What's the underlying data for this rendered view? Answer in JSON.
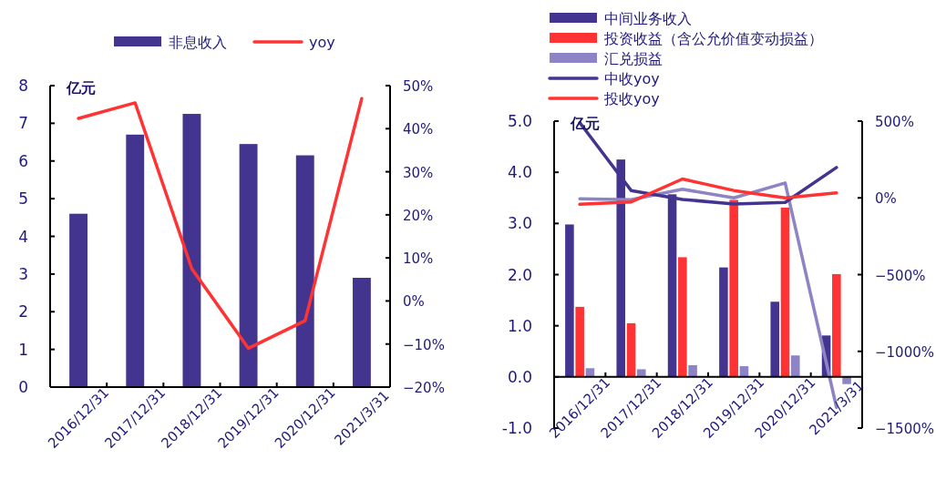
{
  "chart_data": [
    {
      "type": "bar",
      "ylabel": "亿元",
      "categories": [
        "2016/12/31",
        "2017/12/31",
        "2018/12/31",
        "2019/12/31",
        "2020/12/31",
        "2021/3/31"
      ],
      "series": [
        {
          "name": "非息收入",
          "type": "bar",
          "color": "#43358f",
          "values": [
            4.6,
            6.7,
            7.25,
            6.45,
            6.15,
            2.9
          ]
        },
        {
          "name": "yoy",
          "type": "line",
          "axis": "y2",
          "color": "#ff3333",
          "values": [
            42.4,
            46,
            7.5,
            -11,
            -4.6,
            47
          ]
        }
      ],
      "ylim": [
        0,
        8
      ],
      "yticks": [
        0,
        1,
        2,
        3,
        4,
        5,
        6,
        7,
        8
      ],
      "y2lim": [
        -20,
        50
      ],
      "y2ticks": [
        {
          "value": -20,
          "label": "−20%"
        },
        {
          "value": -10,
          "label": "−10%"
        },
        {
          "value": 0,
          "label": "0%"
        },
        {
          "value": 10,
          "label": "10%"
        },
        {
          "value": 20,
          "label": "20%"
        },
        {
          "value": 30,
          "label": "30%"
        },
        {
          "value": 40,
          "label": "40%"
        },
        {
          "value": 50,
          "label": "50%"
        }
      ],
      "grid": false,
      "legend": "top"
    },
    {
      "type": "bar",
      "ylabel": "亿元",
      "categories": [
        "2016/12/31",
        "2017/12/31",
        "2018/12/31",
        "2019/12/31",
        "2020/12/31",
        "2021/3/31"
      ],
      "series": [
        {
          "name": "中间业务收入",
          "type": "bar",
          "color": "#43358f",
          "values": [
            2.98,
            4.25,
            3.57,
            2.14,
            1.47,
            0.81
          ]
        },
        {
          "name": "投资收益（含公允价值变动损益）",
          "type": "bar",
          "color": "#ff3333",
          "values": [
            1.37,
            1.05,
            2.34,
            3.46,
            3.31,
            2.01
          ]
        },
        {
          "name": "汇兑损益",
          "type": "bar",
          "color": "#8c84c4",
          "values": [
            0.17,
            0.15,
            0.23,
            0.21,
            0.42,
            -0.14
          ]
        },
        {
          "type": "line",
          "axis": "y2",
          "color": "#8c84c4",
          "values": [
            -6,
            -12,
            56,
            0,
            97,
            -1365
          ]
        },
        {
          "name": "中收yoy",
          "type": "line",
          "axis": "y2",
          "color": "#43358f",
          "values": [
            490,
            48,
            -10,
            -40,
            -30,
            198
          ]
        },
        {
          "name": "投收yoy",
          "type": "line",
          "axis": "y2",
          "color": "#ff3333",
          "values": [
            -42,
            -26,
            123,
            48,
            0,
            32
          ]
        }
      ],
      "ylim": [
        -1,
        5
      ],
      "yticks": [
        {
          "value": -1,
          "label": "-1.0"
        },
        {
          "value": 0,
          "label": "0.0"
        },
        {
          "value": 1,
          "label": "1.0"
        },
        {
          "value": 2,
          "label": "2.0"
        },
        {
          "value": 3,
          "label": "3.0"
        },
        {
          "value": 4,
          "label": "4.0"
        },
        {
          "value": 5,
          "label": "5.0"
        }
      ],
      "y2lim": [
        -1500,
        500
      ],
      "y2ticks": [
        {
          "value": -1500,
          "label": "−1500%"
        },
        {
          "value": -1000,
          "label": "−1000%"
        },
        {
          "value": -500,
          "label": "−500%"
        },
        {
          "value": 0,
          "label": "0%"
        },
        {
          "value": 500,
          "label": "500%"
        }
      ],
      "grid": false,
      "legend": "top"
    }
  ]
}
